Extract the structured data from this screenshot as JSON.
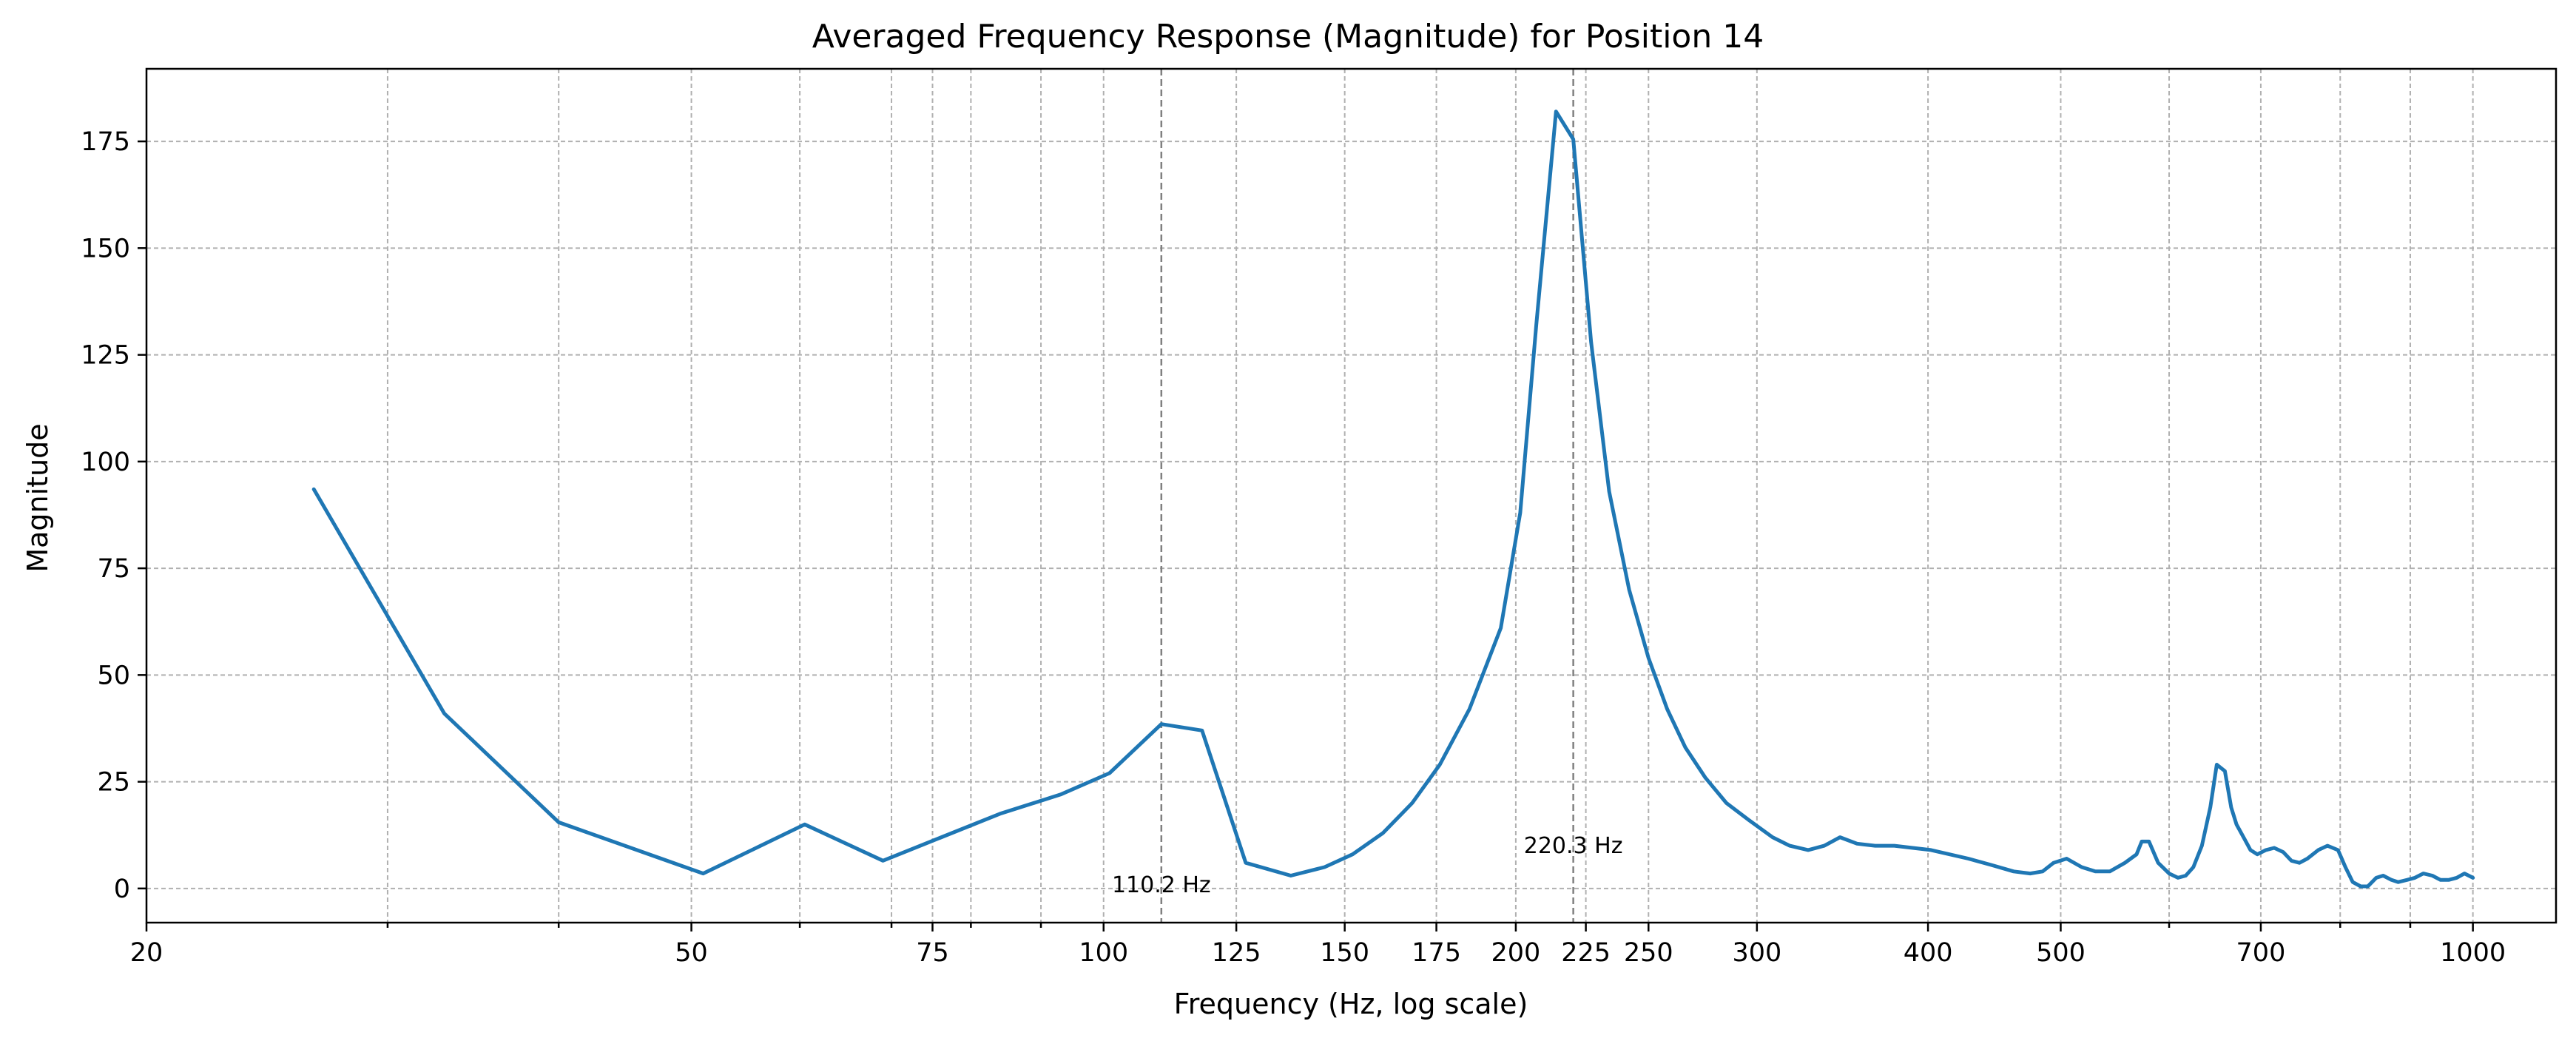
{
  "chart_data": {
    "type": "line",
    "title": "Averaged Frequency Response (Magnitude) for Position 14",
    "xlabel": "Frequency (Hz, log scale)",
    "ylabel": "Magnitude",
    "xscale": "log",
    "xlim": [
      20,
      1150
    ],
    "ylim": [
      -8,
      192
    ],
    "grid": true,
    "x_ticks": [
      20,
      50,
      75,
      100,
      125,
      150,
      175,
      200,
      225,
      250,
      300,
      400,
      500,
      700,
      1000
    ],
    "x_tick_labels": [
      "20",
      "50",
      "75",
      "100",
      "125",
      "150",
      "175",
      "200",
      "225",
      "250",
      "300",
      "400",
      "500",
      "700",
      "1000"
    ],
    "x_minor_gridlines": [
      30,
      40,
      60,
      70,
      80,
      90,
      600,
      800,
      900
    ],
    "y_ticks": [
      0,
      25,
      50,
      75,
      100,
      125,
      150,
      175
    ],
    "y_tick_labels": [
      "0",
      "25",
      "50",
      "75",
      "100",
      "125",
      "150",
      "175"
    ],
    "series": [
      {
        "color": "#1f77b4",
        "x": [
          26.5,
          33.0,
          40.0,
          51.0,
          60.5,
          69.0,
          84.0,
          93.0,
          101.0,
          110.2,
          118.0,
          127.0,
          137.0,
          145.0,
          152.0,
          160.0,
          168.0,
          176.0,
          185.0,
          195.0,
          201.5,
          207.0,
          214.0,
          220.3,
          227.0,
          234.0,
          242.0,
          250.0,
          258.0,
          266.0,
          275.0,
          285.0,
          296.0,
          308.0,
          317.0,
          327.0,
          336.0,
          345.0,
          355.0,
          366.0,
          378.0,
          402.0,
          428.0,
          445.0,
          462.0,
          475.0,
          485.0,
          494.0,
          505.0,
          518.0,
          530.0,
          543.0,
          557.0,
          568.0,
          573.0,
          580.0,
          589.0,
          600.0,
          609.0,
          617.0,
          625.0,
          634.0,
          643.0,
          650.0,
          659.0,
          666.0,
          672.0,
          680.0,
          688.0,
          696.0,
          706.0,
          716.0,
          727.0,
          737.0,
          747.0,
          757.0,
          771.0,
          783.0,
          797.0,
          807.0,
          817.0,
          828.0,
          838.0,
          850.0,
          860.0,
          872.0,
          882.0,
          895.0,
          907.0,
          920.0,
          934.0,
          947.0,
          960.0,
          973.0,
          986.0,
          1000.0
        ],
        "y": [
          93.5,
          41.0,
          15.5,
          3.5,
          15.0,
          6.5,
          17.5,
          22.0,
          27.0,
          38.5,
          37.0,
          6.0,
          3.0,
          5.0,
          8.0,
          13.0,
          20.0,
          29.0,
          42.0,
          61.0,
          88.0,
          132.0,
          182.0,
          175.5,
          128.0,
          93.0,
          70.0,
          54.0,
          42.0,
          33.0,
          26.0,
          20.0,
          16.0,
          12.0,
          10.0,
          9.0,
          10.0,
          12.0,
          10.5,
          10.0,
          10.0,
          9.0,
          7.0,
          5.5,
          4.0,
          3.5,
          4.0,
          6.0,
          7.0,
          5.0,
          4.0,
          4.0,
          6.0,
          8.0,
          11.0,
          11.0,
          6.0,
          3.5,
          2.5,
          3.0,
          5.0,
          10.0,
          19.0,
          29.0,
          27.5,
          19.0,
          15.0,
          12.0,
          9.0,
          8.0,
          9.0,
          9.5,
          8.5,
          6.5,
          6.0,
          7.0,
          9.0,
          10.0,
          9.0,
          5.0,
          1.5,
          0.5,
          0.5,
          2.5,
          3.0,
          2.0,
          1.5,
          2.0,
          2.5,
          3.5,
          3.0,
          2.0,
          2.0,
          2.5,
          3.5,
          2.5
        ]
      }
    ],
    "vlines": [
      {
        "x": 110.2,
        "label": "110.2 Hz",
        "label_y": 0.8
      },
      {
        "x": 220.3,
        "label": "220.3 Hz",
        "label_y": 10
      }
    ]
  }
}
